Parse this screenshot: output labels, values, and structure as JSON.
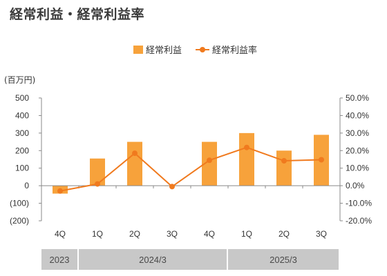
{
  "title": "経常利益・経常利益率",
  "chart_data": {
    "type": "bar+line",
    "categories": [
      "4Q",
      "1Q",
      "2Q",
      "3Q",
      "4Q",
      "1Q",
      "2Q",
      "3Q"
    ],
    "series": [
      {
        "name": "経常利益",
        "kind": "bar",
        "axis": "left",
        "color": "#f7a23b",
        "values": [
          -45,
          155,
          250,
          0,
          250,
          300,
          200,
          290
        ]
      },
      {
        "name": "経常利益率",
        "kind": "line",
        "axis": "right",
        "color": "#f07a1e",
        "values": [
          -3.0,
          1.0,
          18.5,
          -0.5,
          14.5,
          21.8,
          14.2,
          14.8
        ]
      }
    ],
    "y_left": {
      "unit_label": "(百万円)",
      "min": -200,
      "max": 500,
      "step": 100,
      "tick_labels": [
        "(200)",
        "(100)",
        "0",
        "100",
        "200",
        "300",
        "400",
        "500"
      ]
    },
    "y_right": {
      "min": -20,
      "max": 50,
      "step": 10,
      "tick_labels": [
        "-20.0%",
        "-10.0%",
        "0.0%",
        "10.0%",
        "20.0%",
        "30.0%",
        "40.0%",
        "50.0%"
      ]
    },
    "legend": {
      "position": "top-center",
      "items": [
        "経常利益",
        "経常利益率"
      ]
    },
    "grid": false
  },
  "periods": [
    {
      "label": "2023",
      "span": 1
    },
    {
      "label": "2024/3",
      "span": 4
    },
    {
      "label": "2025/3",
      "span": 3
    }
  ]
}
